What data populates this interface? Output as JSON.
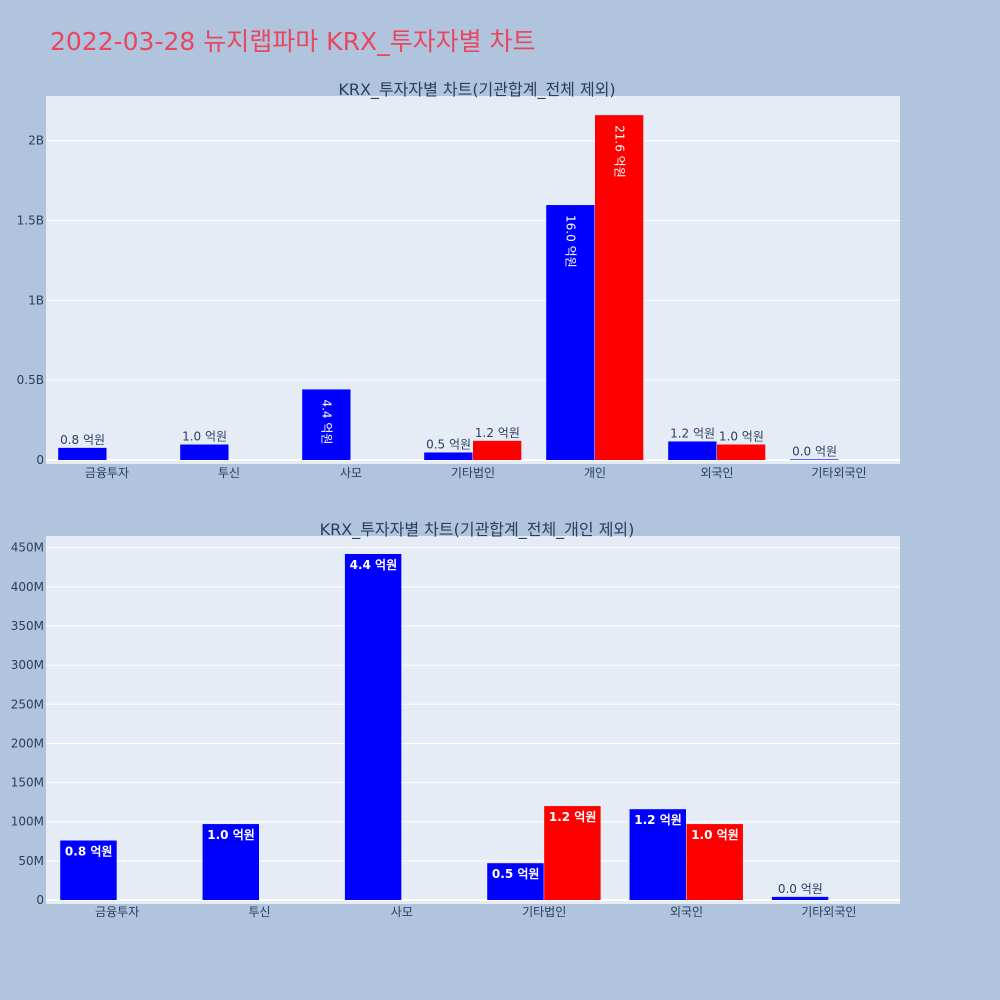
{
  "page": {
    "title": "2022-03-28 뉴지랩파마 KRX_투자자별 차트"
  },
  "colors": {
    "buy": "#0000ff",
    "sell": "#ff0000",
    "plot_bg": "#e5ecf6",
    "page_bg": "#b0c4de",
    "title": "#e8475f"
  },
  "chart_data": [
    {
      "type": "bar",
      "title": "KRX_투자자별 차트(기관합계_전체 제외)",
      "categories": [
        "금융투자",
        "투신",
        "사모",
        "기타법인",
        "개인",
        "외국인",
        "기타외국인"
      ],
      "series": [
        {
          "color": "#0000ff",
          "values": [
            76000000,
            97000000,
            442000000,
            47000000,
            1597000000,
            116000000,
            4000000
          ],
          "labels": [
            "0.8 억원",
            "1.0 억원",
            "4.4 억원",
            "0.5 억원",
            "16.0 억원",
            "1.2 억원",
            "0.0 억원"
          ]
        },
        {
          "color": "#ff0000",
          "values": [
            null,
            null,
            null,
            120000000,
            2160000000,
            97000000,
            null
          ],
          "labels": [
            "",
            "",
            "",
            "1.2 억원",
            "21.6 억원",
            "1.0 억원",
            ""
          ]
        }
      ],
      "ylim": [
        0,
        2280000000
      ],
      "yticks": [
        0,
        500000000,
        1000000000,
        1500000000,
        2000000000
      ],
      "ytick_labels": [
        "0",
        "0.5B",
        "1B",
        "1.5B",
        "2B"
      ],
      "grid": true
    },
    {
      "type": "bar",
      "title": "KRX_투자자별 차트(기관합계_전체_개인 제외)",
      "categories": [
        "금융투자",
        "투신",
        "사모",
        "기타법인",
        "외국인",
        "기타외국인"
      ],
      "series": [
        {
          "color": "#0000ff",
          "values": [
            76000000,
            97000000,
            442000000,
            47000000,
            116000000,
            4000000
          ],
          "labels": [
            "0.8 억원",
            "1.0 억원",
            "4.4 억원",
            "0.5 억원",
            "1.2 억원",
            "0.0 억원"
          ]
        },
        {
          "color": "#ff0000",
          "values": [
            null,
            null,
            null,
            120000000,
            97000000,
            null
          ],
          "labels": [
            "",
            "",
            "",
            "1.2 억원",
            "1.0 억원",
            ""
          ]
        }
      ],
      "ylim": [
        0,
        465000000
      ],
      "yticks": [
        0,
        50000000,
        100000000,
        150000000,
        200000000,
        250000000,
        300000000,
        350000000,
        400000000,
        450000000
      ],
      "ytick_labels": [
        "0",
        "50M",
        "100M",
        "150M",
        "200M",
        "250M",
        "300M",
        "350M",
        "400M",
        "450M"
      ],
      "grid": true
    }
  ]
}
